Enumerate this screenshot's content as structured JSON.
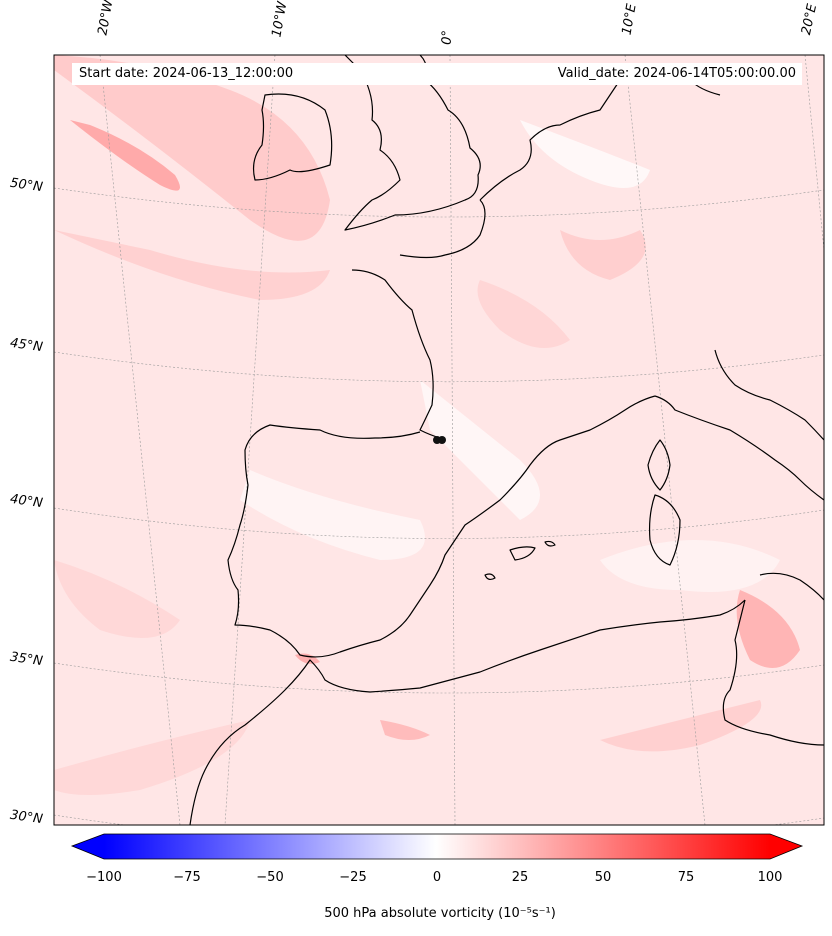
{
  "header": {
    "start_date": "Start date: 2024-06-13_12:00:00",
    "valid_date": "Valid_date: 2024-06-14T05:00:00.00"
  },
  "longitude_labels": [
    "20°W",
    "10°W",
    "0°",
    "10°E",
    "20°E"
  ],
  "latitude_labels": [
    "50°N",
    "45°N",
    "40°N",
    "35°N",
    "30°N"
  ],
  "colorbar": {
    "ticks": [
      "−100",
      "−75",
      "−50",
      "−25",
      "0",
      "25",
      "50",
      "75",
      "100"
    ],
    "label": "500 hPa absolute vorticity (10⁻⁵s⁻¹)",
    "min": -100,
    "max": 100,
    "negative_color": "#0000ff",
    "positive_color": "#ff0000"
  },
  "colors": {
    "background_field": "#ffecec",
    "coastline": "#000000"
  }
}
